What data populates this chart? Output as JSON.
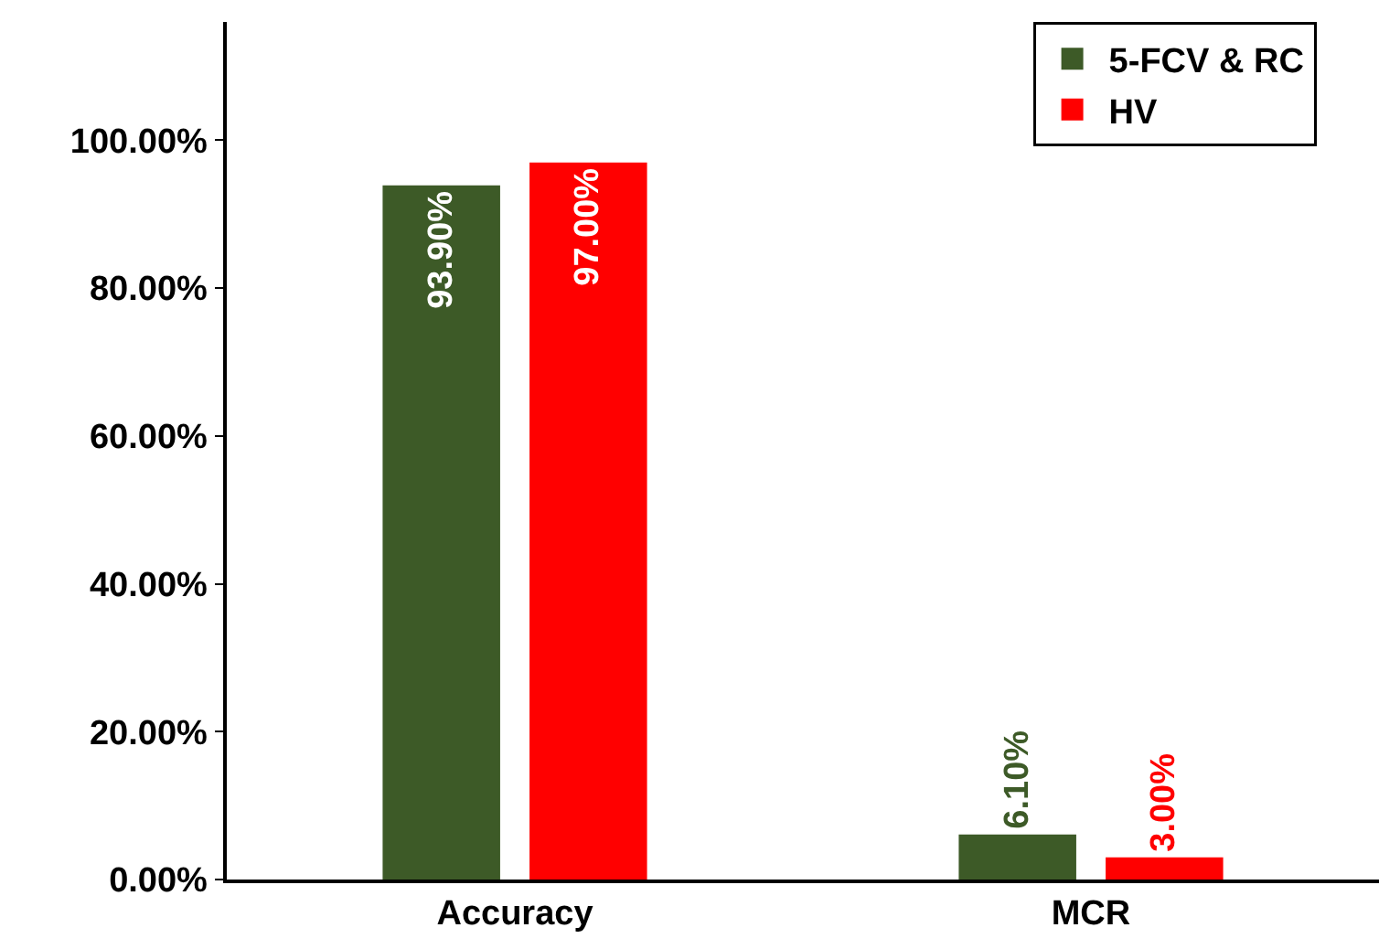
{
  "chart_data": {
    "type": "bar",
    "categories": [
      "Accuracy",
      "MCR"
    ],
    "series": [
      {
        "name": "5-FCV & RC",
        "color": "#3d5a27",
        "values": [
          93.9,
          6.1
        ],
        "value_labels": [
          "93.90%",
          "6.10%"
        ]
      },
      {
        "name": "HV",
        "color": "#ff0000",
        "values": [
          97.0,
          3.0
        ],
        "value_labels": [
          "97.00%",
          "3.00%"
        ]
      }
    ],
    "ylim": [
      0,
      116
    ],
    "yticks": [
      {
        "value": 0,
        "label": "0.00%"
      },
      {
        "value": 20,
        "label": "20.00%"
      },
      {
        "value": 40,
        "label": "40.00%"
      },
      {
        "value": 60,
        "label": "60.00%"
      },
      {
        "value": 80,
        "label": "80.00%"
      },
      {
        "value": 100,
        "label": "100.00%"
      }
    ],
    "grid": false,
    "legend": "top right"
  }
}
